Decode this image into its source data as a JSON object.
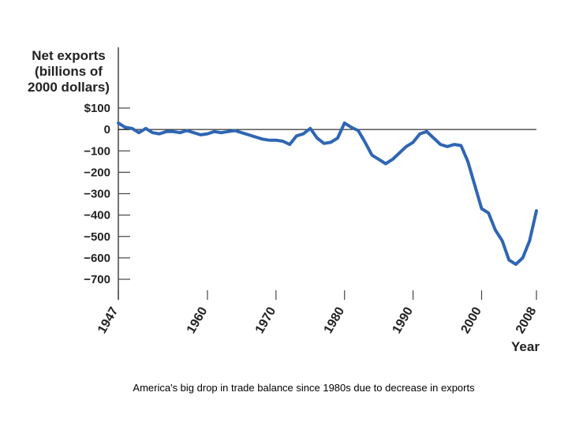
{
  "caption": "America's big drop in trade balance  since 1980s due to decrease in exports",
  "chart_data": {
    "type": "line",
    "ylabel": [
      "Net exports",
      "(billions of",
      "2000 dollars)"
    ],
    "xlabel": "Year",
    "xlim": [
      1947,
      2008
    ],
    "ylim": [
      -700,
      100
    ],
    "yticks": [
      100,
      0,
      -100,
      -200,
      -300,
      -400,
      -500,
      -600,
      -700
    ],
    "ytick_labels": [
      "$100",
      "0",
      "−100",
      "−200",
      "−300",
      "−400",
      "−500",
      "−600",
      "−700"
    ],
    "xticks": [
      1947,
      1960,
      1970,
      1980,
      1990,
      2000,
      2008
    ],
    "xtick_labels": [
      "1947",
      "1960",
      "1970",
      "1980",
      "1990",
      "2000",
      "2008"
    ],
    "zero_line": true,
    "grid": false,
    "line_color": "#2f66b3",
    "series": [
      {
        "x": [
          1947,
          1948,
          1949,
          1950,
          1951,
          1952,
          1953,
          1954,
          1955,
          1956,
          1957,
          1958,
          1959,
          1960,
          1961,
          1962,
          1963,
          1964,
          1965,
          1966,
          1967,
          1968,
          1969,
          1970,
          1971,
          1972,
          1973,
          1974,
          1975,
          1976,
          1977,
          1978,
          1979,
          1980,
          1981,
          1982,
          1983,
          1984,
          1985,
          1986,
          1987,
          1988,
          1989,
          1990,
          1991,
          1992,
          1993,
          1994,
          1995,
          1996,
          1997,
          1998,
          1999,
          2000,
          2001,
          2002,
          2003,
          2004,
          2005,
          2006,
          2007,
          2008
        ],
        "values": [
          30,
          10,
          5,
          -15,
          5,
          -15,
          -20,
          -10,
          -10,
          -15,
          -5,
          -15,
          -25,
          -20,
          -10,
          -15,
          -10,
          -5,
          -15,
          -25,
          -35,
          -45,
          -50,
          -50,
          -55,
          -70,
          -30,
          -20,
          5,
          -40,
          -65,
          -60,
          -40,
          30,
          10,
          -5,
          -60,
          -120,
          -140,
          -160,
          -140,
          -110,
          -80,
          -60,
          -20,
          -10,
          -40,
          -70,
          -80,
          -70,
          -75,
          -150,
          -260,
          -370,
          -390,
          -470,
          -520,
          -610,
          -630,
          -600,
          -520,
          -380
        ]
      }
    ]
  }
}
